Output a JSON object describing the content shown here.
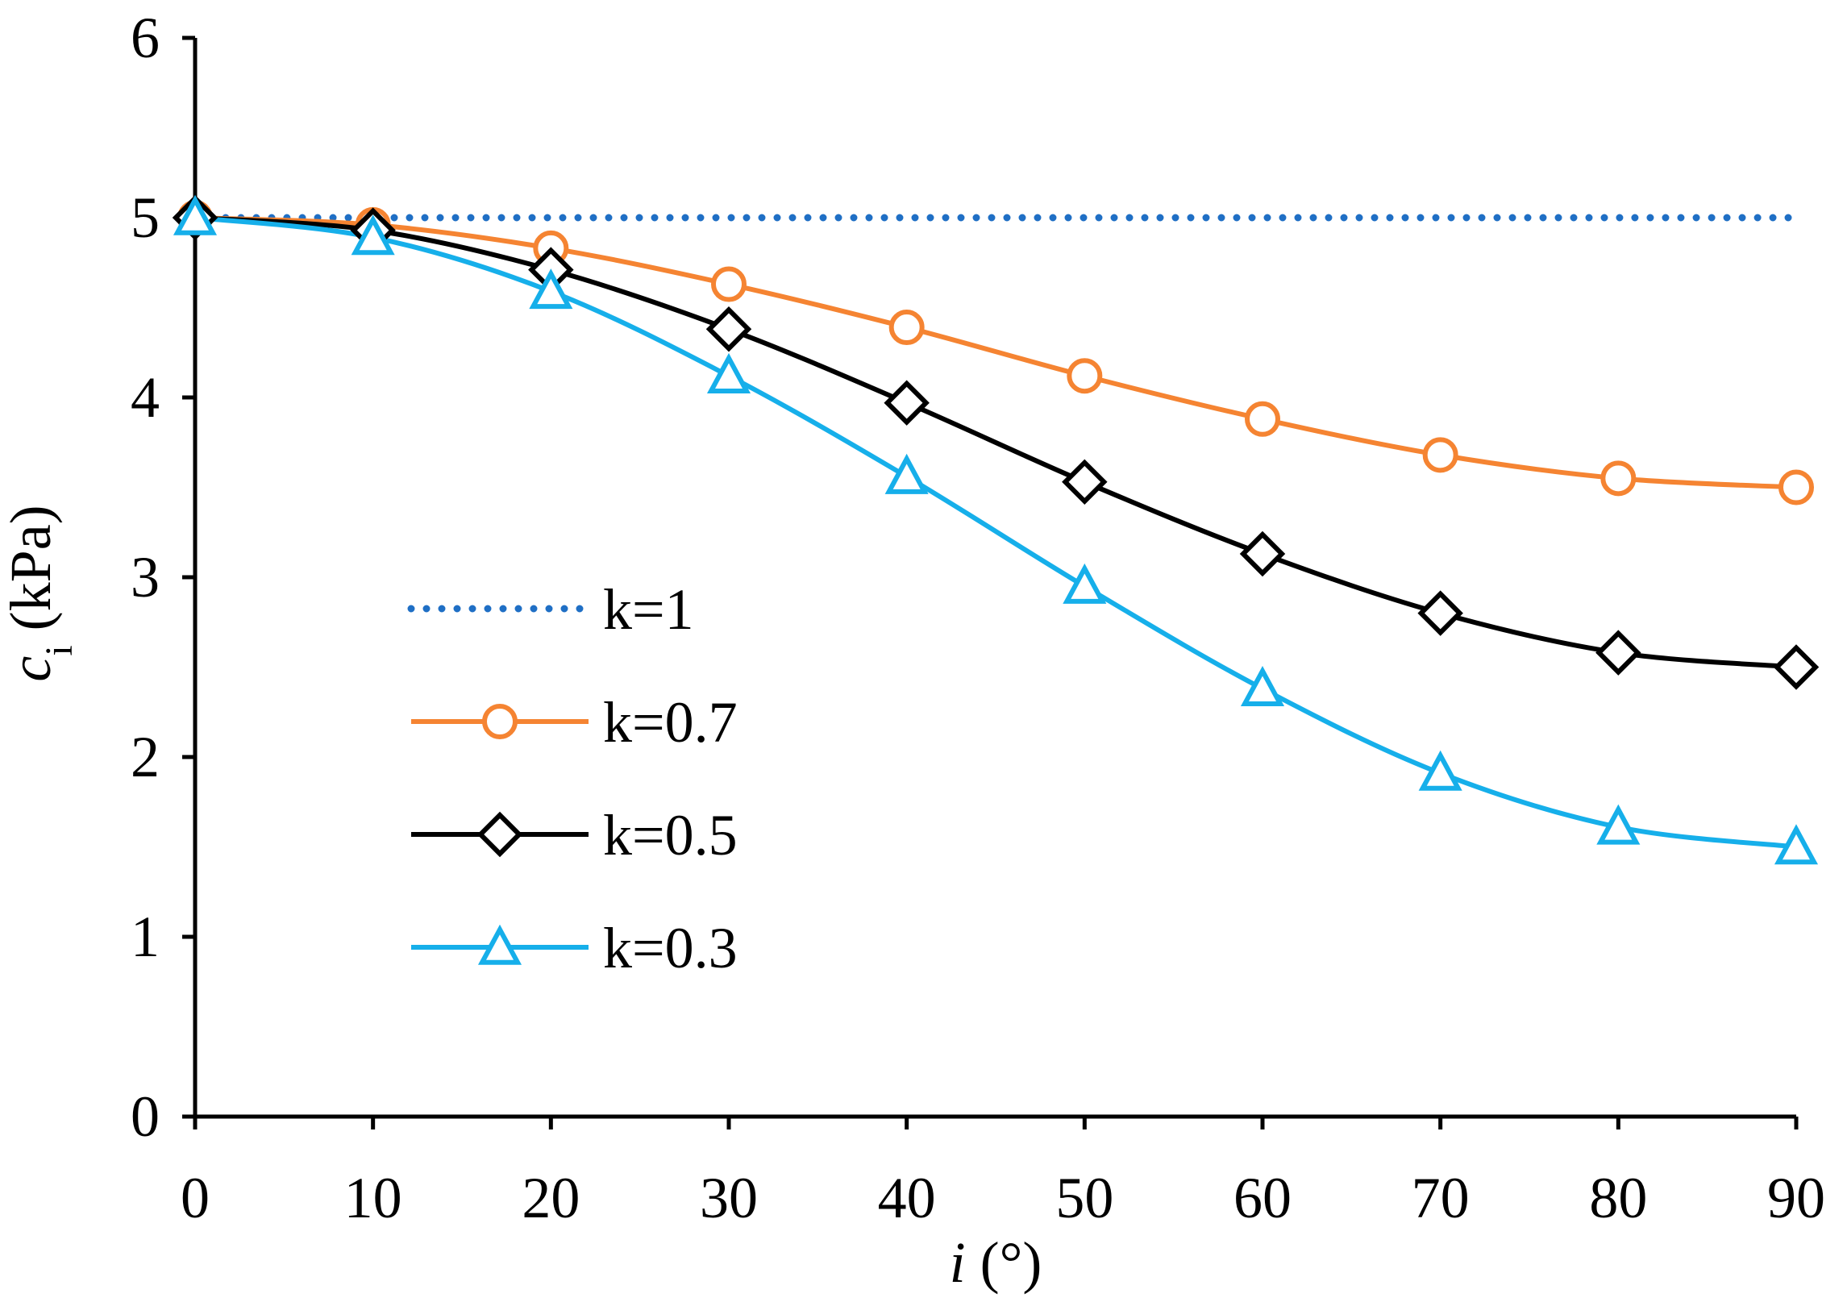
{
  "chart_data": {
    "type": "line",
    "title": "",
    "xlabel": {
      "var": "i",
      "unit": " (°)"
    },
    "ylabel": {
      "var": "c",
      "sub": "i",
      "unit": " (kPa)"
    },
    "x": [
      0,
      10,
      20,
      30,
      40,
      50,
      60,
      70,
      80,
      90
    ],
    "xlim": [
      0,
      90
    ],
    "ylim": [
      0,
      6
    ],
    "x_ticks": [
      "0",
      "10",
      "20",
      "30",
      "40",
      "50",
      "60",
      "70",
      "80",
      "90"
    ],
    "y_ticks": [
      "0",
      "1",
      "2",
      "3",
      "4",
      "5",
      "6"
    ],
    "grid": false,
    "legend_position": "center-left",
    "series": [
      {
        "name": "k=1",
        "color": "#1F6FC5",
        "style": "dotted",
        "marker": "none",
        "values": [
          5,
          5,
          5,
          5,
          5,
          5,
          5,
          5,
          5,
          5
        ]
      },
      {
        "name": "k=0.7",
        "color": "#F58432",
        "style": "solid",
        "marker": "circle",
        "values": [
          5.0,
          4.96,
          4.83,
          4.63,
          4.39,
          4.12,
          3.88,
          3.68,
          3.55,
          3.5
        ]
      },
      {
        "name": "k=0.5",
        "color": "#000000",
        "style": "solid",
        "marker": "diamond",
        "values": [
          5.0,
          4.93,
          4.71,
          4.38,
          3.97,
          3.53,
          3.13,
          2.8,
          2.58,
          2.5
        ]
      },
      {
        "name": "k=0.3",
        "color": "#16AFEA",
        "style": "solid",
        "marker": "triangle",
        "values": [
          5.0,
          4.89,
          4.59,
          4.12,
          3.56,
          2.95,
          2.38,
          1.91,
          1.61,
          1.5
        ]
      }
    ]
  }
}
